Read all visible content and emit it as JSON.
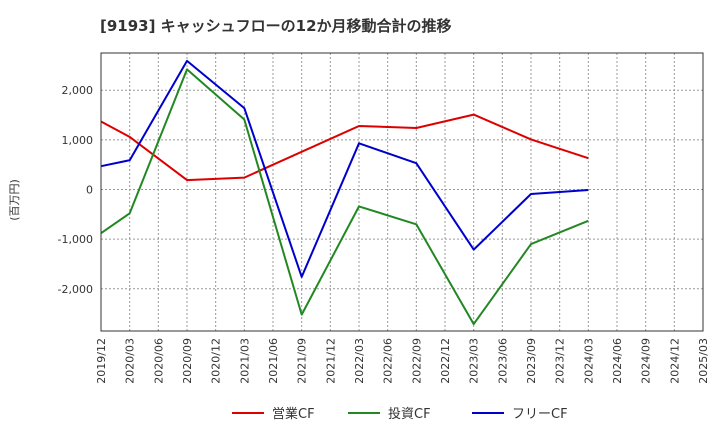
{
  "chart_data": {
    "type": "line",
    "title": "[9193]  キャッシュフローの12か月移動合計の推移",
    "xlabel": "",
    "ylabel": "(百万円)",
    "ylim": [
      -2850,
      2750
    ],
    "yticks": [
      -2000,
      -1000,
      0,
      1000,
      2000
    ],
    "ytick_labels": [
      "-2,000",
      "-1,000",
      "0",
      "1,000",
      "2,000"
    ],
    "x": [
      "2019/12",
      "2020/03",
      "2020/06",
      "2020/09",
      "2020/12",
      "2021/03",
      "2021/06",
      "2021/09",
      "2021/12",
      "2022/03",
      "2022/06",
      "2022/09",
      "2022/12",
      "2023/03",
      "2023/06",
      "2023/09",
      "2023/12",
      "2024/03",
      "2024/06",
      "2024/09",
      "2024/12",
      "2025/03"
    ],
    "grid": true,
    "legend_position": "bottom",
    "series": [
      {
        "name": "営業CF",
        "color": "#dd0000",
        "values": [
          1370,
          1060,
          null,
          190,
          null,
          240,
          null,
          null,
          null,
          1280,
          null,
          1240,
          null,
          1510,
          null,
          1010,
          null,
          630,
          null,
          null,
          null,
          null
        ]
      },
      {
        "name": "投資CF",
        "color": "#228822",
        "values": [
          -880,
          -480,
          null,
          2420,
          null,
          1410,
          null,
          -2520,
          null,
          -340,
          null,
          -700,
          null,
          -2710,
          null,
          -1100,
          null,
          -630,
          null,
          null,
          null,
          null
        ]
      },
      {
        "name": "フリーCF",
        "color": "#0000cc",
        "values": [
          470,
          590,
          null,
          2590,
          null,
          1640,
          null,
          -1760,
          null,
          930,
          null,
          530,
          null,
          -1210,
          null,
          -90,
          null,
          -10,
          null,
          null,
          null,
          null
        ]
      }
    ]
  }
}
